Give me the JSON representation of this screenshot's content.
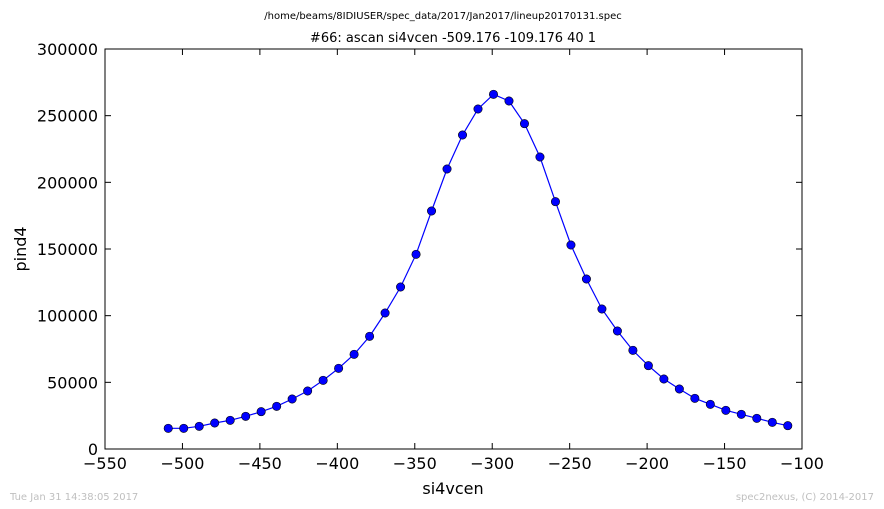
{
  "suptitle": "/home/beams/8IDIUSER/spec_data/2017/Jan2017/lineup20170131.spec",
  "footer": {
    "timestamp": "Tue Jan 31 14:38:05 2017",
    "credit": "spec2nexus, (C) 2014-2017"
  },
  "colors": {
    "series": "#0000ff",
    "marker_edge": "#000000",
    "axes": "#000000",
    "footer_text": "#bfbfbf"
  },
  "chart_data": {
    "type": "line",
    "title": "#66: ascan  si4vcen -509.176 -109.176  40 1",
    "xlabel": "si4vcen",
    "ylabel": "pind4",
    "xlim": [
      -550,
      -100
    ],
    "ylim": [
      0,
      300000
    ],
    "xticks": [
      -550,
      -500,
      -450,
      -400,
      -350,
      -300,
      -250,
      -200,
      -150,
      -100
    ],
    "yticks": [
      0,
      50000,
      100000,
      150000,
      200000,
      250000,
      300000
    ],
    "grid": false,
    "series": [
      {
        "marker": "circle",
        "x": [
          -509.176,
          -499.176,
          -489.176,
          -479.176,
          -469.176,
          -459.176,
          -449.176,
          -439.176,
          -429.176,
          -419.176,
          -409.176,
          -399.176,
          -389.176,
          -379.176,
          -369.176,
          -359.176,
          -349.176,
          -339.176,
          -329.176,
          -319.176,
          -309.176,
          -299.176,
          -289.176,
          -279.176,
          -269.176,
          -259.176,
          -249.176,
          -239.176,
          -229.176,
          -219.176,
          -209.176,
          -199.176,
          -189.176,
          -179.176,
          -169.176,
          -159.176,
          -149.176,
          -139.176,
          -129.176,
          -119.176,
          -109.176
        ],
        "y": [
          15500,
          15500,
          17000,
          19500,
          21500,
          24500,
          28000,
          32000,
          37500,
          43500,
          51500,
          60500,
          71000,
          84500,
          102000,
          121500,
          146000,
          178500,
          210000,
          235500,
          255000,
          266000,
          261000,
          244000,
          219000,
          185500,
          153000,
          127500,
          105000,
          88500,
          74000,
          62500,
          52500,
          45000,
          38000,
          33500,
          29000,
          26000,
          23000,
          20000,
          17500
        ]
      }
    ]
  }
}
